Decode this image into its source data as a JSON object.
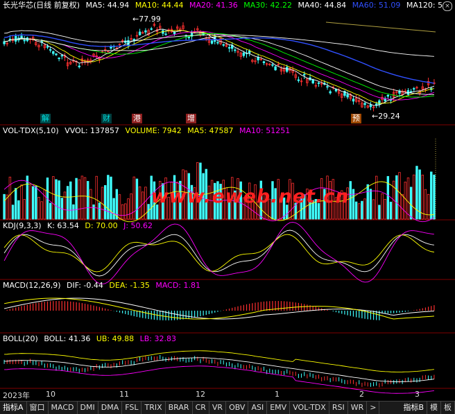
{
  "main": {
    "stock": "长光华芯(日线 前复权)",
    "ma": [
      {
        "label": "MA5: 44.94",
        "color": "#ffffff"
      },
      {
        "label": "MA10: 44.44",
        "color": "#ffff00"
      },
      {
        "label": "MA20: 41.36",
        "color": "#ff00ff"
      },
      {
        "label": "MA30: 42.22",
        "color": "#00ff00"
      },
      {
        "label": "MA40: 44.84",
        "color": "#ffffff"
      },
      {
        "label": "MA60: 51.09",
        "color": "#3050ff"
      },
      {
        "label": "MA120: 5",
        "color": "#ffffff"
      }
    ],
    "high_label": "77.99",
    "low_label": "29.24",
    "events": [
      {
        "label": "解",
        "color": "#00e0e0",
        "bg": "#006060"
      },
      {
        "label": "财",
        "color": "#00e0e0",
        "bg": "#005050"
      },
      {
        "label": "港",
        "color": "#ffffff",
        "bg": "#a02020"
      },
      {
        "label": "增",
        "color": "#ffffff",
        "bg": "#a02020"
      },
      {
        "label": "预",
        "color": "#ffffff",
        "bg": "#b05000"
      }
    ]
  },
  "vol": {
    "name": "VOL-TDX(5,10)",
    "items": [
      {
        "label": "VVOL: 137857",
        "color": "#ffffff"
      },
      {
        "label": "VOLUME: 7942",
        "color": "#ffff00"
      },
      {
        "label": "MA5: 47587",
        "color": "#ffff00"
      },
      {
        "label": "MA10: 51251",
        "color": "#ff00ff"
      }
    ]
  },
  "kdj": {
    "name": "KDJ(9,3,3)",
    "items": [
      {
        "label": "K: 63.54",
        "color": "#ffffff"
      },
      {
        "label": "D: 70.00",
        "color": "#ffff00"
      },
      {
        "label": "J: 50.62",
        "color": "#ff00ff"
      }
    ]
  },
  "macd": {
    "name": "MACD(12,26,9)",
    "items": [
      {
        "label": "DIF: -0.44",
        "color": "#ffffff"
      },
      {
        "label": "DEA: -1.35",
        "color": "#ffff00"
      },
      {
        "label": "MACD: 1.81",
        "color": "#ff00ff"
      }
    ]
  },
  "boll": {
    "name": "BOLL(20)",
    "items": [
      {
        "label": "BOLL: 41.36",
        "color": "#ffffff"
      },
      {
        "label": "UB: 49.88",
        "color": "#ffff00"
      },
      {
        "label": "LB: 32.83",
        "color": "#ff00ff"
      }
    ]
  },
  "xaxis": [
    "2023年",
    "10",
    "11",
    "12",
    "1",
    "2",
    "3"
  ],
  "watermark": "www.eweb.net.cn",
  "tabs": [
    "指标A",
    "窗口",
    "MACD",
    "DMI",
    "DMA",
    "FSL",
    "TRIX",
    "BRAR",
    "CR",
    "VR",
    "OBV",
    "ASI",
    "EMV",
    "VOL-TDX",
    "RSI",
    "WR",
    ">"
  ],
  "tabs_right": [
    "指标B",
    "模",
    "板"
  ],
  "colors": {
    "up": "#ff3030",
    "down": "#40ffff",
    "grid": "#800000"
  }
}
